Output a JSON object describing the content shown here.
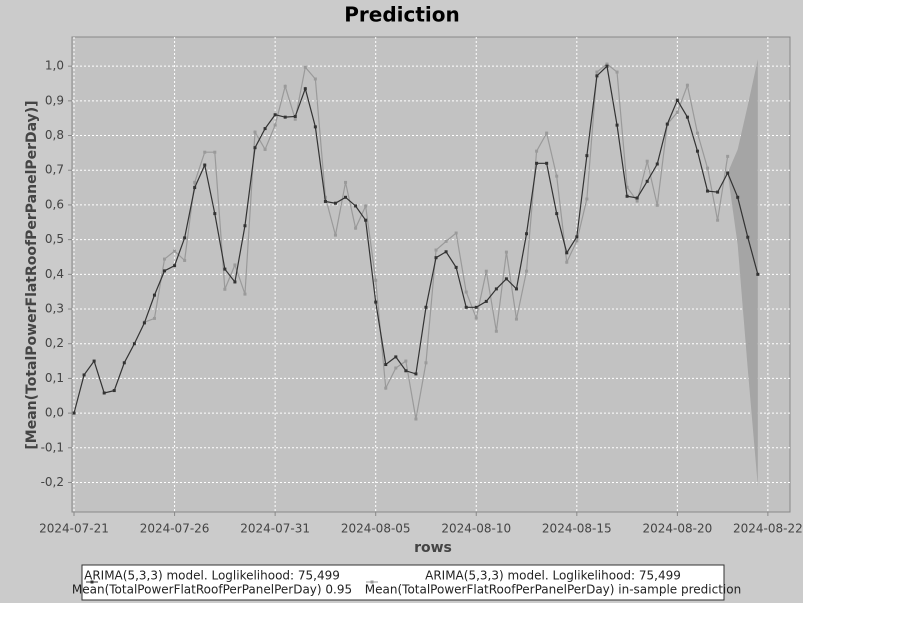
{
  "chart_data": {
    "type": "line",
    "title": "Prediction",
    "x_label": "rows",
    "y_label": "[Mean(TotalPowerFlatRoofPerPanelPerDay)]",
    "x": [
      0,
      1,
      2,
      3,
      4,
      5,
      6,
      7,
      8,
      9,
      10,
      11,
      12,
      13,
      14,
      15,
      16,
      17,
      18,
      19,
      20,
      21,
      22,
      23,
      24,
      25,
      26,
      27,
      28,
      29,
      30,
      31,
      32,
      33,
      34,
      35,
      36,
      37,
      38,
      39,
      40,
      41,
      42,
      43,
      44,
      45,
      46,
      47,
      48,
      49,
      50,
      51,
      52,
      53,
      54,
      55,
      56,
      57,
      58,
      59,
      60,
      61,
      62,
      63,
      64,
      65,
      66,
      67,
      68
    ],
    "series": [
      {
        "name": [
          "ARIMA(5,3,3) model. Loglikelihood: 75,499",
          "Mean(TotalPowerFlatRoofPerPanelPerDay) 0.95"
        ],
        "color": "#333333",
        "values": [
          0.0,
          0.11,
          0.15,
          0.058,
          0.065,
          0.145,
          0.2,
          0.26,
          0.34,
          0.41,
          0.425,
          0.505,
          0.65,
          0.715,
          0.575,
          0.415,
          0.378,
          0.54,
          0.765,
          0.82,
          0.86,
          0.853,
          0.855,
          0.935,
          0.825,
          0.61,
          0.605,
          0.622,
          0.597,
          0.556,
          0.32,
          0.14,
          0.162,
          0.122,
          0.113,
          0.305,
          0.448,
          0.465,
          0.42,
          0.305,
          0.305,
          0.322,
          0.358,
          0.387,
          0.358,
          0.517,
          0.72,
          0.72,
          0.575,
          0.462,
          0.508,
          0.742,
          0.972,
          1.0,
          0.83,
          0.625,
          0.62,
          0.668,
          0.718,
          0.833,
          0.902,
          0.853,
          0.755,
          0.64,
          0.637,
          0.692,
          0.622,
          0.507,
          0.4
        ]
      },
      {
        "name": [
          "ARIMA(5,3,3) model. Loglikelihood: 75,499",
          "Mean(TotalPowerFlatRoofPerPanelPerDay) in-sample prediction"
        ],
        "color": "#9a9a9a",
        "values": [
          null,
          null,
          null,
          null,
          null,
          null,
          null,
          0.262,
          0.273,
          0.444,
          0.467,
          0.44,
          0.665,
          0.752,
          0.752,
          0.357,
          0.427,
          0.343,
          0.81,
          0.76,
          0.83,
          0.942,
          0.847,
          0.997,
          0.963,
          0.622,
          0.513,
          0.665,
          0.533,
          0.597,
          0.383,
          0.072,
          0.13,
          0.15,
          -0.017,
          0.145,
          0.47,
          0.495,
          0.519,
          0.349,
          0.274,
          0.409,
          0.236,
          0.464,
          0.271,
          0.409,
          0.755,
          0.807,
          0.683,
          0.435,
          0.496,
          0.617,
          0.983,
          1.006,
          0.983,
          0.651,
          0.611,
          0.726,
          0.599,
          0.833,
          0.867,
          0.945,
          0.807,
          0.706,
          0.556,
          0.74,
          null,
          null,
          null
        ]
      }
    ],
    "band": {
      "color": "#a5a5a5",
      "upper": [
        null,
        null,
        null,
        null,
        null,
        null,
        null,
        null,
        null,
        null,
        null,
        null,
        null,
        null,
        null,
        null,
        null,
        null,
        null,
        null,
        null,
        null,
        null,
        null,
        null,
        null,
        null,
        null,
        null,
        null,
        null,
        null,
        null,
        null,
        null,
        null,
        null,
        null,
        null,
        null,
        null,
        null,
        null,
        null,
        null,
        null,
        null,
        null,
        null,
        null,
        null,
        null,
        null,
        null,
        null,
        null,
        null,
        null,
        null,
        null,
        null,
        null,
        null,
        null,
        null,
        0.692,
        0.76,
        0.887,
        1.02
      ],
      "lower": [
        null,
        null,
        null,
        null,
        null,
        null,
        null,
        null,
        null,
        null,
        null,
        null,
        null,
        null,
        null,
        null,
        null,
        null,
        null,
        null,
        null,
        null,
        null,
        null,
        null,
        null,
        null,
        null,
        null,
        null,
        null,
        null,
        null,
        null,
        null,
        null,
        null,
        null,
        null,
        null,
        null,
        null,
        null,
        null,
        null,
        null,
        null,
        null,
        null,
        null,
        null,
        null,
        null,
        null,
        null,
        null,
        null,
        null,
        null,
        null,
        null,
        null,
        null,
        null,
        null,
        0.692,
        0.484,
        0.127,
        -0.21
      ]
    },
    "xlim": [
      -0.2,
      71.2
    ],
    "xticks": [
      {
        "value": 0,
        "label": "2024-07-21"
      },
      {
        "value": 10,
        "label": "2024-07-26"
      },
      {
        "value": 20,
        "label": "2024-07-31"
      },
      {
        "value": 30,
        "label": "2024-08-05"
      },
      {
        "value": 40,
        "label": "2024-08-10"
      },
      {
        "value": 50,
        "label": "2024-08-15"
      },
      {
        "value": 60,
        "label": "2024-08-20"
      },
      {
        "value": 69,
        "label": "2024-08-22"
      }
    ],
    "ylim": [
      -0.285,
      1.084
    ],
    "yticks": [
      {
        "value": -0.2,
        "label": "-0,2"
      },
      {
        "value": -0.1,
        "label": "-0,1"
      },
      {
        "value": 0,
        "label": "0,0"
      },
      {
        "value": 0.1,
        "label": "0,1"
      },
      {
        "value": 0.2,
        "label": "0,2"
      },
      {
        "value": 0.3,
        "label": "0,3"
      },
      {
        "value": 0.4,
        "label": "0,4"
      },
      {
        "value": 0.5,
        "label": "0,5"
      },
      {
        "value": 0.6,
        "label": "0,6"
      },
      {
        "value": 0.7,
        "label": "0,7"
      },
      {
        "value": 0.8,
        "label": "0,8"
      },
      {
        "value": 0.9,
        "label": "0,9"
      },
      {
        "value": 1.0,
        "label": "1,0"
      }
    ],
    "grid": true
  }
}
